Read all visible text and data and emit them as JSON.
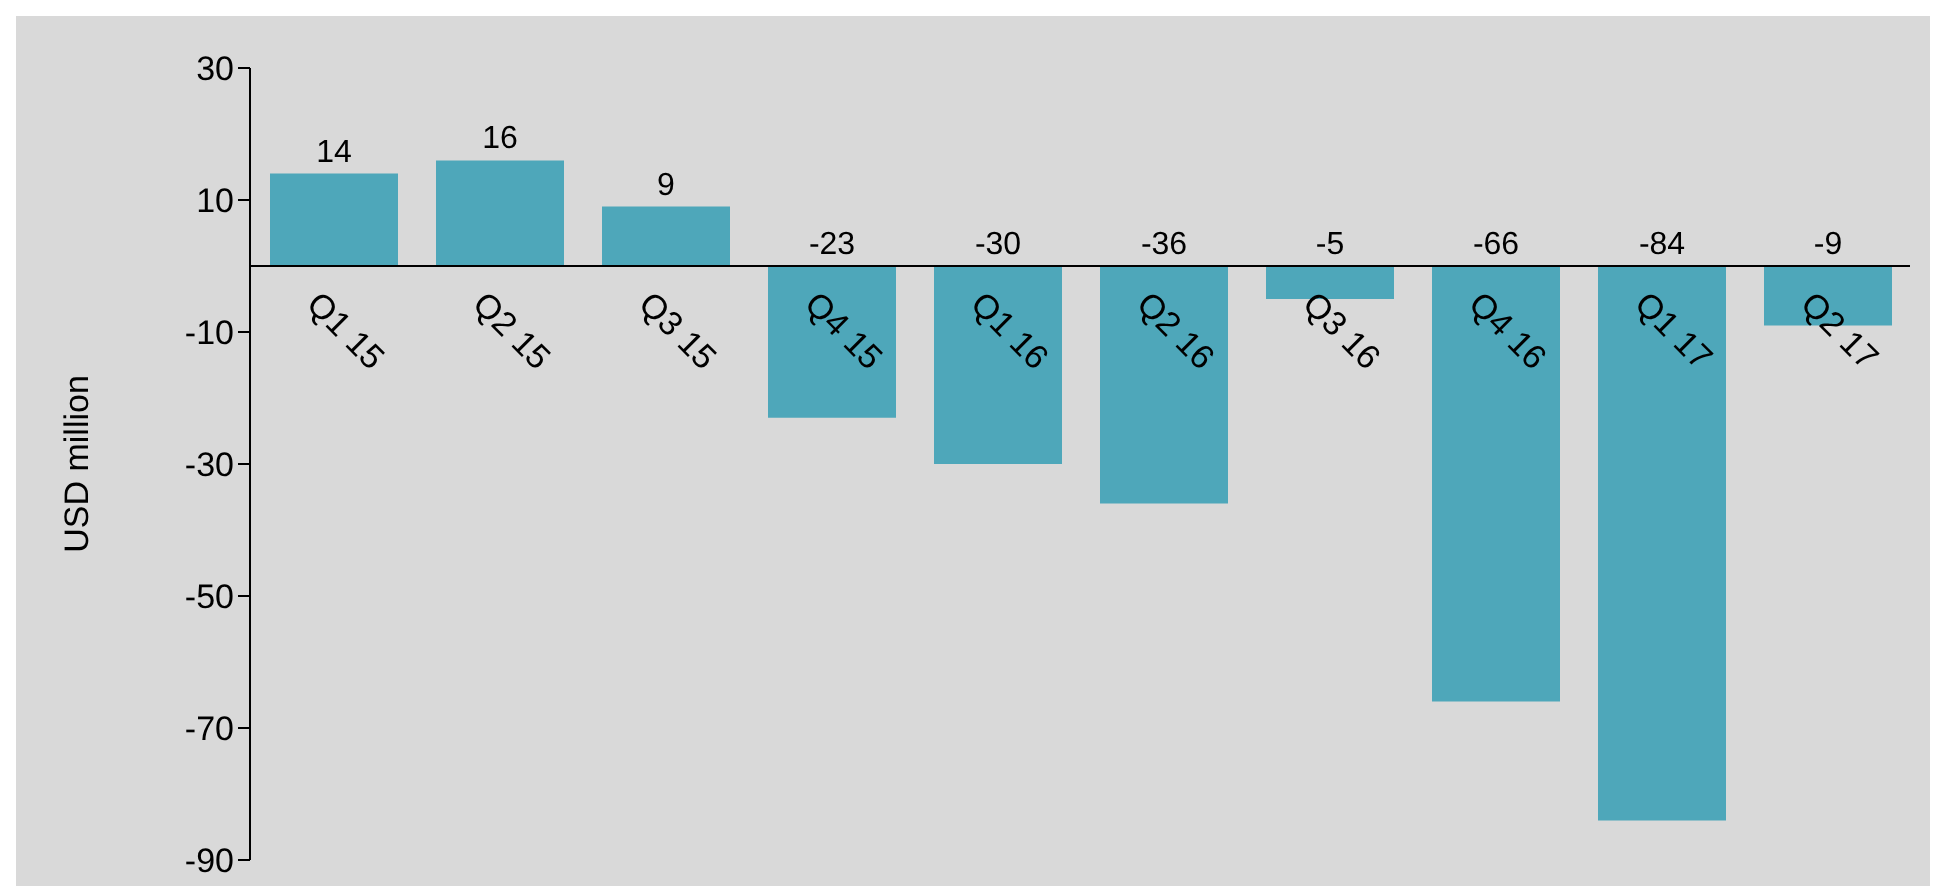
{
  "chart_data": {
    "type": "bar",
    "ylabel": "USD million",
    "categories": [
      "Q1 15",
      "Q2 15",
      "Q3 15",
      "Q4 15",
      "Q1 16",
      "Q2 16",
      "Q3 16",
      "Q4 16",
      "Q1 17",
      "Q2 17"
    ],
    "values": [
      14,
      16,
      9,
      -23,
      -30,
      -36,
      -5,
      -66,
      -84,
      -9
    ],
    "color": "#4ea7ba",
    "ylim": [
      -90,
      30
    ],
    "yticks": [
      -90,
      -70,
      -50,
      -30,
      -10,
      10,
      30
    ],
    "data_labels": true,
    "grid": false,
    "legend": false
  }
}
